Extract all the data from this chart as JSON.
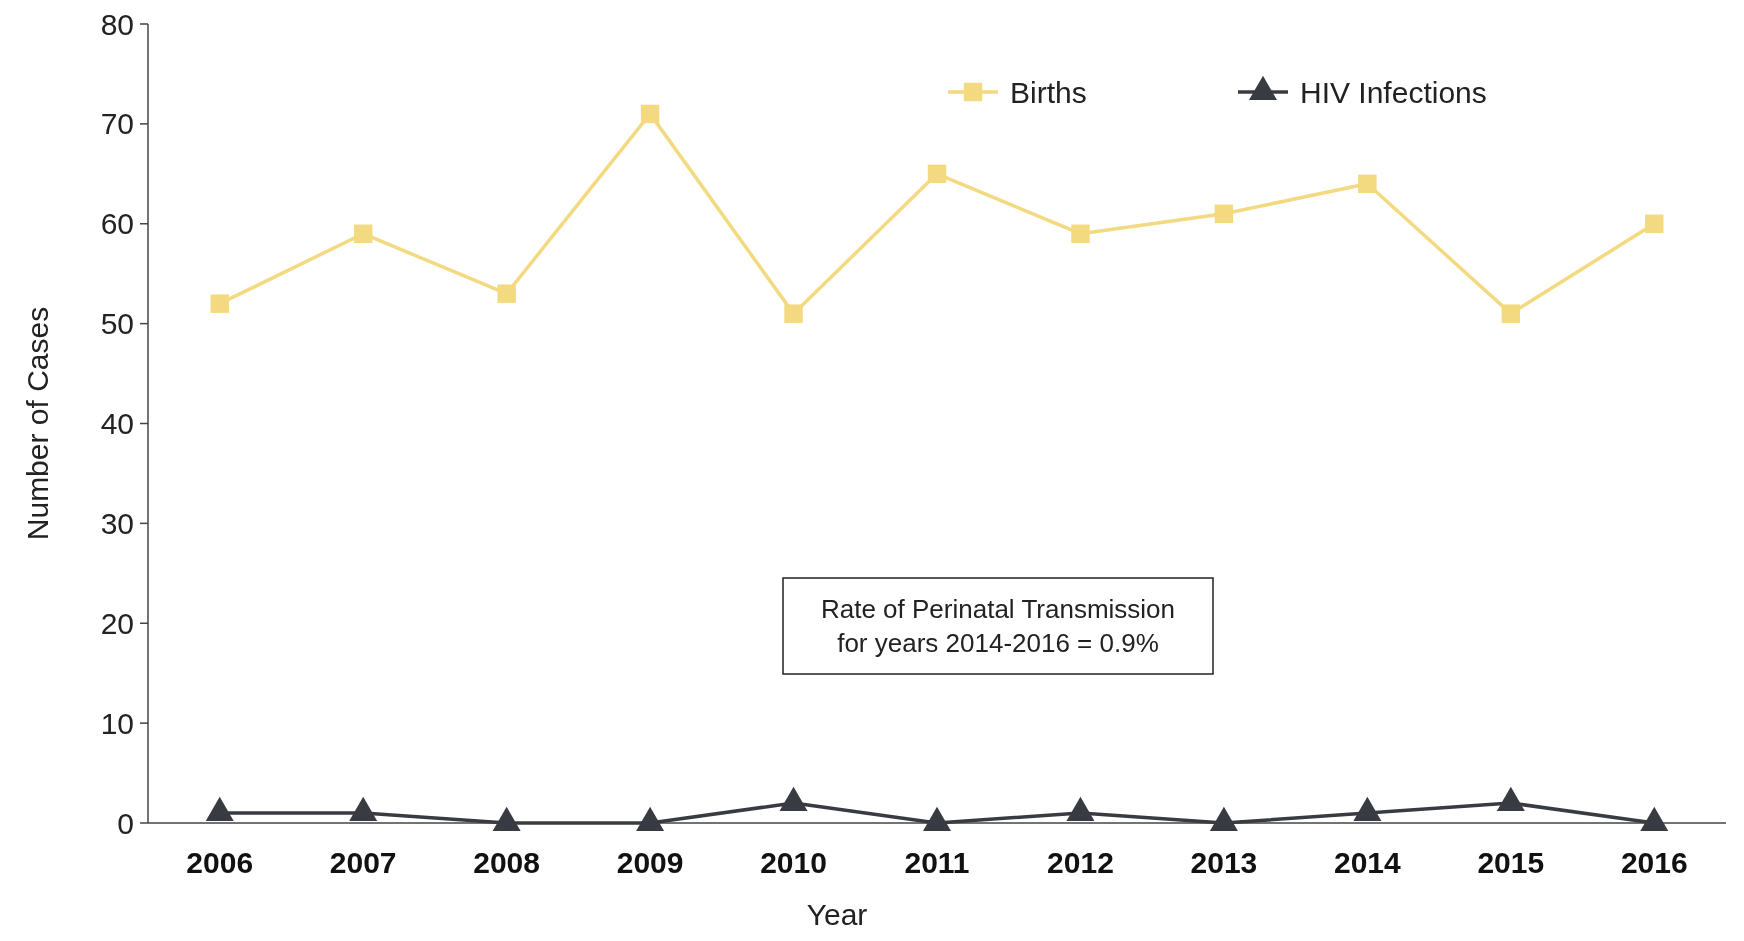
{
  "chart_data": {
    "type": "line",
    "xlabel": "Year",
    "ylabel": "Number of Cases",
    "categories": [
      "2006",
      "2007",
      "2008",
      "2009",
      "2010",
      "2011",
      "2012",
      "2013",
      "2014",
      "2015",
      "2016"
    ],
    "series": [
      {
        "name": "Births",
        "color": "#f3d97f",
        "marker": "square",
        "values": [
          52,
          59,
          53,
          71,
          51,
          65,
          59,
          61,
          64,
          51,
          60
        ]
      },
      {
        "name": "HIV Infections",
        "color": "#383c42",
        "marker": "triangle",
        "values": [
          1,
          1,
          0,
          0,
          2,
          0,
          1,
          0,
          1,
          2,
          0
        ]
      }
    ],
    "ylim": [
      0,
      80
    ],
    "yticks": [
      0,
      10,
      20,
      30,
      40,
      50,
      60,
      70,
      80
    ],
    "grid": false,
    "legend": "top right",
    "annotations": [
      "Rate of Perinatal Transmission\nfor years 2014-2016 = 0.9%"
    ]
  }
}
